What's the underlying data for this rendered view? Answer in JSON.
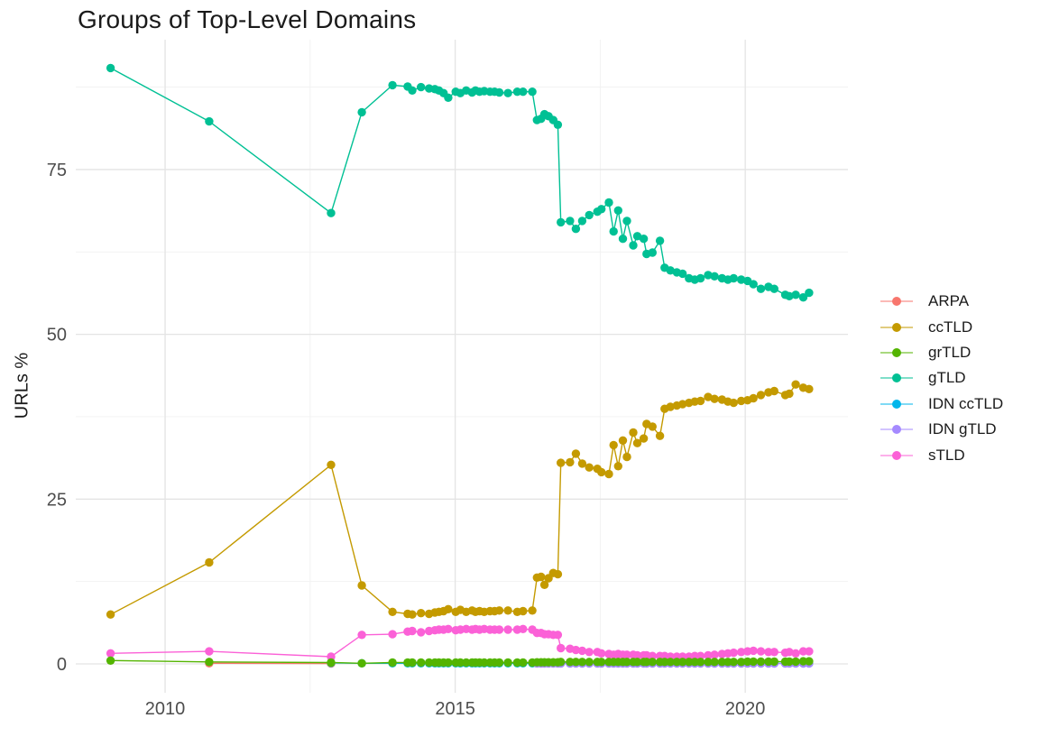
{
  "chart": {
    "title": "Groups of Top-Level Domains",
    "ylabel": "URLs %"
  },
  "chart_data": {
    "type": "line",
    "title": "Groups of Top-Level Domains",
    "xlabel": "",
    "ylabel": "URLs %",
    "grid": true,
    "legend_position": "right",
    "xlim": [
      2008.46,
      2021.77
    ],
    "ylim": [
      -4.38,
      94.7
    ],
    "x_ticks": [
      2010,
      2015,
      2020
    ],
    "x_tick_labels": [
      "2010",
      "2015",
      "2020"
    ],
    "y_ticks": [
      0,
      25,
      50,
      75
    ],
    "y_tick_labels": [
      "0",
      "25",
      "50",
      "75"
    ],
    "x_minor_gridlines": [
      2012.5,
      2017.5
    ],
    "y_minor_gridlines": [
      12.5,
      37.5,
      62.5,
      87.5
    ],
    "x_dense": [
      2013.92,
      2014.18,
      2014.26,
      2014.41,
      2014.55,
      2014.65,
      2014.72,
      2014.8,
      2014.88,
      2015.01,
      2015.09,
      2015.19,
      2015.29,
      2015.35,
      2015.42,
      2015.5,
      2015.6,
      2015.68,
      2015.76,
      2015.91,
      2016.07,
      2016.17,
      2016.33,
      2016.41,
      2016.48,
      2016.54,
      2016.61,
      2016.69,
      2016.77,
      2016.82,
      2016.98,
      2017.08,
      2017.19,
      2017.31,
      2017.45,
      2017.52,
      2017.65,
      2017.73,
      2017.81,
      2017.89,
      2017.96,
      2018.07,
      2018.14,
      2018.25,
      2018.3,
      2018.4,
      2018.53,
      2018.61,
      2018.71,
      2018.82,
      2018.92,
      2019.03,
      2019.13,
      2019.23,
      2019.36,
      2019.47,
      2019.6,
      2019.7,
      2019.8,
      2019.93,
      2020.04,
      2020.14,
      2020.27,
      2020.4,
      2020.5,
      2020.69,
      2020.76,
      2020.87,
      2021.0,
      2021.1
    ],
    "draw_order": [
      "ARPA",
      "IDN ccTLD",
      "sTLD",
      "ccTLD",
      "gTLD",
      "IDN gTLD",
      "grTLD"
    ],
    "series": [
      {
        "name": "ARPA",
        "color": "#F8766D",
        "points_early": [
          [
            2010.76,
            0.1
          ],
          [
            2012.86,
            0.05
          ]
        ],
        "dense_start_index": null,
        "y_dense": []
      },
      {
        "name": "ccTLD",
        "color": "#C49A00",
        "points_early": [
          [
            2009.06,
            7.5
          ],
          [
            2010.76,
            15.4
          ],
          [
            2012.86,
            30.2
          ],
          [
            2013.39,
            11.9
          ]
        ],
        "dense_start_index": 0,
        "y_dense": [
          7.9,
          7.6,
          7.5,
          7.7,
          7.6,
          7.8,
          7.9,
          8.0,
          8.3,
          7.9,
          8.2,
          7.9,
          8.1,
          7.9,
          8.0,
          7.9,
          8.0,
          8.0,
          8.1,
          8.1,
          7.9,
          8.0,
          8.1,
          13.1,
          13.2,
          12.0,
          13.0,
          13.8,
          13.6,
          30.5,
          30.6,
          31.9,
          30.4,
          29.8,
          29.6,
          29.1,
          28.8,
          33.2,
          30.0,
          33.9,
          31.4,
          35.1,
          33.5,
          34.2,
          36.4,
          36.0,
          34.6,
          38.7,
          39.0,
          39.2,
          39.4,
          39.6,
          39.8,
          39.9,
          40.5,
          40.2,
          40.1,
          39.8,
          39.6,
          39.9,
          40.0,
          40.3,
          40.8,
          41.2,
          41.4,
          40.8,
          41.0,
          42.4,
          41.9,
          41.7
        ]
      },
      {
        "name": "grTLD",
        "color": "#53B400",
        "points_early": [
          [
            2009.06,
            0.5
          ],
          [
            2010.76,
            0.3
          ],
          [
            2012.86,
            0.2
          ],
          [
            2013.39,
            0.1
          ]
        ],
        "dense_start_index": 0,
        "y_dense": [
          0.2,
          0.2,
          0.2,
          0.2,
          0.2,
          0.2,
          0.2,
          0.2,
          0.2,
          0.2,
          0.2,
          0.2,
          0.2,
          0.2,
          0.2,
          0.2,
          0.2,
          0.2,
          0.2,
          0.2,
          0.2,
          0.2,
          0.2,
          0.25,
          0.25,
          0.25,
          0.25,
          0.25,
          0.25,
          0.3,
          0.3,
          0.3,
          0.3,
          0.3,
          0.3,
          0.3,
          0.3,
          0.3,
          0.3,
          0.3,
          0.3,
          0.3,
          0.3,
          0.3,
          0.3,
          0.3,
          0.3,
          0.3,
          0.3,
          0.3,
          0.3,
          0.3,
          0.3,
          0.3,
          0.3,
          0.3,
          0.3,
          0.3,
          0.3,
          0.3,
          0.35,
          0.35,
          0.35,
          0.35,
          0.35,
          0.35,
          0.35,
          0.35,
          0.4,
          0.4
        ]
      },
      {
        "name": "gTLD",
        "color": "#00C094",
        "points_early": [
          [
            2009.06,
            90.4
          ],
          [
            2010.76,
            82.3
          ],
          [
            2012.86,
            68.4
          ],
          [
            2013.39,
            83.7
          ]
        ],
        "dense_start_index": 0,
        "y_dense": [
          87.8,
          87.6,
          87.0,
          87.5,
          87.3,
          87.2,
          87.0,
          86.6,
          85.9,
          86.8,
          86.6,
          87.0,
          86.7,
          87.0,
          86.8,
          86.9,
          86.8,
          86.8,
          86.7,
          86.6,
          86.8,
          86.8,
          86.8,
          82.5,
          82.7,
          83.4,
          83.1,
          82.5,
          81.8,
          67.0,
          67.2,
          66.0,
          67.2,
          68.1,
          68.6,
          69.0,
          70.0,
          65.6,
          68.8,
          64.5,
          67.2,
          63.5,
          64.9,
          64.5,
          62.2,
          62.4,
          64.2,
          60.1,
          59.7,
          59.4,
          59.2,
          58.5,
          58.3,
          58.5,
          59.0,
          58.8,
          58.5,
          58.3,
          58.5,
          58.3,
          58.1,
          57.6,
          56.9,
          57.2,
          56.9,
          56.0,
          55.8,
          56.0,
          55.6,
          56.3
        ]
      },
      {
        "name": "IDN ccTLD",
        "color": "#00B6EB",
        "points_early": [
          [
            2012.86,
            0.15
          ],
          [
            2013.39,
            0.1
          ]
        ],
        "dense_start_index": 0,
        "y_dense": [
          0.1,
          0.1,
          0.1,
          0.1,
          0.1,
          0.1,
          0.1,
          0.1,
          0.1,
          0.1,
          0.1,
          0.1,
          0.1,
          0.1,
          0.1,
          0.1,
          0.1,
          0.1,
          0.1,
          0.1,
          0.1,
          0.1,
          0.1,
          0.1,
          0.1,
          0.1,
          0.1,
          0.1,
          0.1,
          0.1,
          0.1,
          0.1,
          0.1,
          0.1,
          0.1,
          0.1,
          0.1,
          0.1,
          0.1,
          0.1,
          0.1,
          0.1,
          0.1,
          0.1,
          0.1,
          0.1,
          0.1,
          0.1,
          0.1,
          0.1,
          0.1,
          0.1,
          0.1,
          0.1,
          0.1,
          0.1,
          0.1,
          0.1,
          0.1,
          0.1,
          0.1,
          0.1,
          0.1,
          0.1,
          0.1,
          0.1,
          0.1,
          0.1,
          0.1,
          0.1
        ]
      },
      {
        "name": "IDN gTLD",
        "color": "#A58AFF",
        "points_early": [],
        "dense_start_index": 23,
        "y_dense": [
          0.05,
          0.05,
          0.05,
          0.05,
          0.05,
          0.05,
          0.05,
          0.05,
          0.05,
          0.05,
          0.05,
          0.05,
          0.05,
          0.05,
          0.05,
          0.05,
          0.05,
          0.05,
          0.05,
          0.05,
          0.05,
          0.05,
          0.05,
          0.05,
          0.05,
          0.05,
          0.05,
          0.05,
          0.05,
          0.05,
          0.05,
          0.05,
          0.05,
          0.05,
          0.05,
          0.05,
          0.05,
          0.05,
          0.05,
          0.05,
          0.05,
          0.05,
          0.05,
          0.05,
          0.05,
          0.05,
          0.05
        ]
      },
      {
        "name": "sTLD",
        "color": "#FB61D7",
        "points_early": [
          [
            2009.06,
            1.6
          ],
          [
            2010.76,
            1.9
          ],
          [
            2012.86,
            1.1
          ],
          [
            2013.39,
            4.4
          ]
        ],
        "dense_start_index": 0,
        "y_dense": [
          4.5,
          4.9,
          5.0,
          4.8,
          5.0,
          5.1,
          5.2,
          5.2,
          5.3,
          5.1,
          5.2,
          5.3,
          5.2,
          5.3,
          5.2,
          5.3,
          5.2,
          5.2,
          5.2,
          5.2,
          5.2,
          5.3,
          5.2,
          4.7,
          4.7,
          4.5,
          4.5,
          4.4,
          4.4,
          2.4,
          2.3,
          2.1,
          2.0,
          1.8,
          1.8,
          1.6,
          1.5,
          1.4,
          1.5,
          1.4,
          1.4,
          1.4,
          1.3,
          1.3,
          1.3,
          1.2,
          1.2,
          1.2,
          1.1,
          1.1,
          1.1,
          1.1,
          1.2,
          1.2,
          1.3,
          1.4,
          1.5,
          1.6,
          1.7,
          1.8,
          1.9,
          2.0,
          1.9,
          1.8,
          1.8,
          1.7,
          1.8,
          1.6,
          1.9,
          1.9
        ]
      }
    ],
    "style": {
      "major_grid_color": "#e4e4e4",
      "minor_grid_color": "#f1f1f1",
      "axis_text_color": "#4d4d4d",
      "point_radius": 4.7,
      "line_width": 1.4
    }
  }
}
